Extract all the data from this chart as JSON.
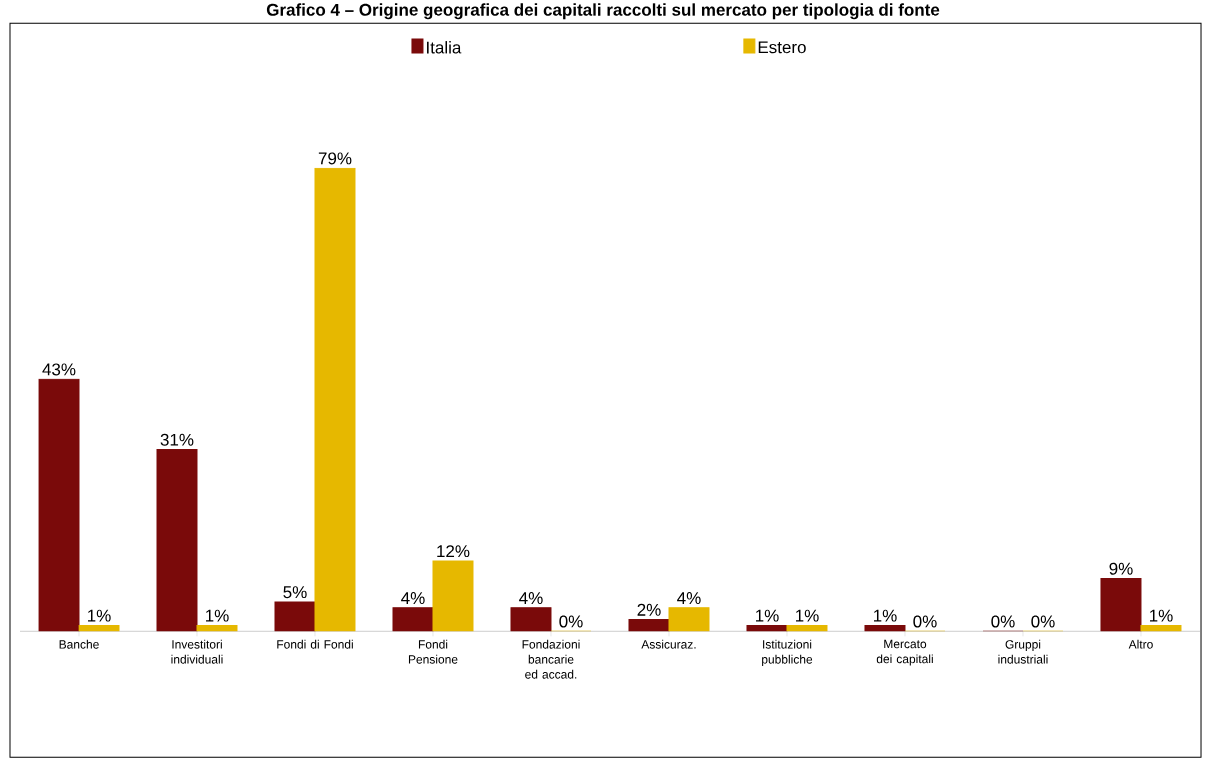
{
  "chart_data": {
    "type": "bar",
    "title": "Grafico 4 – Origine geografica dei capitali raccolti sul mercato per tipologia di fonte",
    "categories": [
      "Banche",
      "Investitori individuali",
      "Fondi di Fondi",
      "Fondi Pensione",
      "Fondazioni bancarie ed accad.",
      "Assicuraz.",
      "Istituzioni pubbliche",
      "Mercato dei capitali",
      "Gruppi industriali",
      "Altro"
    ],
    "series": [
      {
        "name": "Italia",
        "color": "#7a0a0a",
        "values": [
          43,
          31,
          5,
          4,
          4,
          2,
          1,
          1,
          0,
          9
        ],
        "value_labels": [
          "43%",
          "31%",
          "5%",
          "4%",
          "4%",
          "2%",
          "1%",
          "1%",
          "0%",
          "9%"
        ]
      },
      {
        "name": "Estero",
        "color": "#e6b800",
        "values": [
          1,
          1,
          79,
          12,
          0,
          4,
          1,
          0,
          0,
          1
        ],
        "value_labels": [
          "1%",
          "1%",
          "79%",
          "12%",
          "0%",
          "4%",
          "1%",
          "0%",
          "0%",
          "1%"
        ]
      }
    ],
    "legend": "top"
  }
}
